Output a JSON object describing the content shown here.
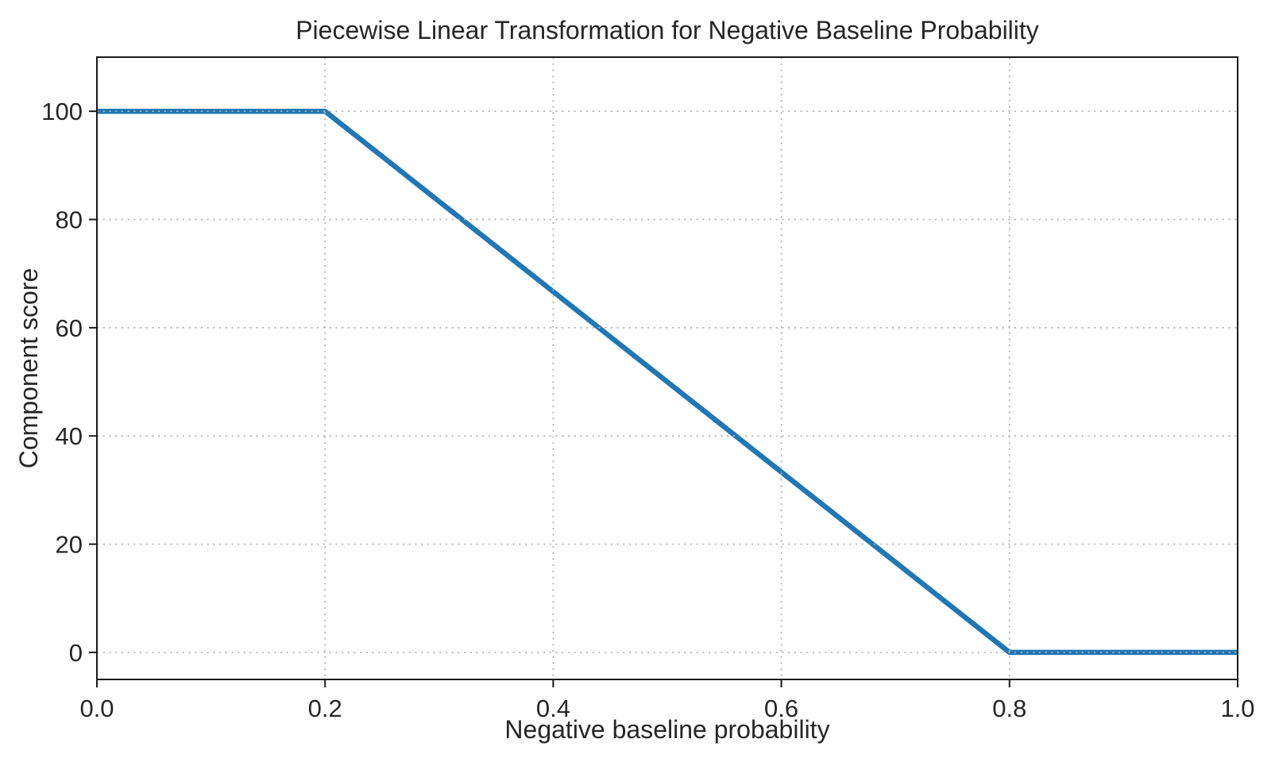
{
  "figure": {
    "background": "#ffffff"
  },
  "chart_data": {
    "type": "line",
    "title": "Piecewise Linear Transformation for Negative Baseline Probability",
    "xlabel": "Negative baseline probability",
    "ylabel": "Component score",
    "series": [
      {
        "name": "component-score-line",
        "x": [
          0.0,
          0.2,
          0.8,
          1.0
        ],
        "y": [
          100,
          100,
          0,
          0
        ],
        "color": "#2077b4",
        "line_width": 6.5
      }
    ],
    "xlim": [
      0.0,
      1.0
    ],
    "ylim": [
      -5,
      110
    ],
    "xticks": [
      0.0,
      0.2,
      0.4,
      0.6,
      0.8,
      1.0
    ],
    "xtick_labels": [
      "0.0",
      "0.2",
      "0.4",
      "0.6",
      "0.8",
      "1.0"
    ],
    "yticks": [
      0,
      20,
      40,
      60,
      80,
      100
    ],
    "ytick_labels": [
      "0",
      "20",
      "40",
      "60",
      "80",
      "100"
    ],
    "grid": true,
    "grid_style": "dotted",
    "grid_color": "#b3b3b3",
    "axis_color": "#1a1a1a",
    "text_color": "#262626",
    "legend": null
  }
}
